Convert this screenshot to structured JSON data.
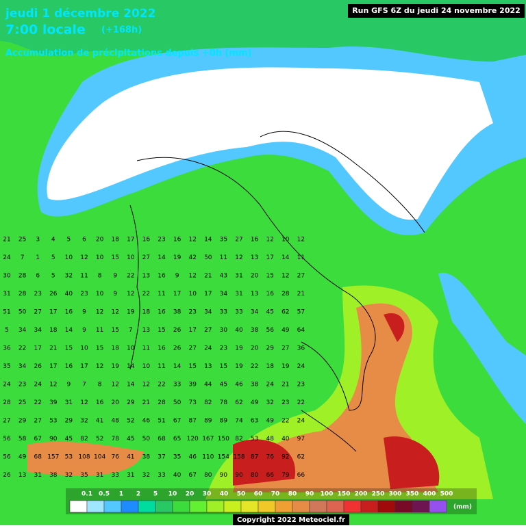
{
  "header": {
    "title": "jeudi 1 décembre 2022",
    "time": "7:00 locale",
    "offset": "(+168h)",
    "subtitle": "Accumulation de précipitations depuis +0h (mm)",
    "run": "Run GFS 6Z du jeudi 24 novembre 2022"
  },
  "legend": {
    "values": [
      0.1,
      0.5,
      1,
      2,
      5,
      10,
      20,
      30,
      40,
      50,
      60,
      70,
      80,
      90,
      100,
      150,
      200,
      250,
      300,
      350,
      400,
      500
    ],
    "colors": [
      "#ffffff",
      "#9fe6ff",
      "#52c8ff",
      "#1e8cff",
      "#00dca0",
      "#28c864",
      "#3cdc3c",
      "#64f032",
      "#a0f028",
      "#c8f01e",
      "#e6e628",
      "#f0c828",
      "#f0a032",
      "#e68c46",
      "#d2785a",
      "#dc6450",
      "#f03232",
      "#c81e1e",
      "#a00a0a",
      "#780a28",
      "#6e1450",
      "#9650f0"
    ],
    "unit": "(mm)"
  },
  "grid": {
    "rows": [
      [
        21,
        25,
        3,
        4,
        5,
        6,
        20,
        18,
        17,
        16,
        23,
        16,
        12,
        14,
        35,
        27,
        16,
        12,
        10,
        12
      ],
      [
        24,
        7,
        1,
        5,
        10,
        12,
        10,
        15,
        10,
        27,
        14,
        19,
        42,
        50,
        11,
        12,
        13,
        17,
        14,
        11
      ],
      [
        30,
        28,
        6,
        5,
        32,
        11,
        8,
        9,
        22,
        13,
        16,
        9,
        12,
        21,
        43,
        31,
        20,
        15,
        12,
        27
      ],
      [
        31,
        28,
        23,
        26,
        40,
        23,
        10,
        9,
        12,
        22,
        11,
        17,
        10,
        17,
        34,
        31,
        13,
        16,
        28,
        21
      ],
      [
        51,
        50,
        27,
        17,
        16,
        9,
        12,
        12,
        19,
        18,
        16,
        38,
        23,
        34,
        33,
        33,
        34,
        45,
        62,
        57
      ],
      [
        5,
        34,
        34,
        18,
        14,
        9,
        11,
        15,
        7,
        13,
        15,
        26,
        17,
        27,
        30,
        40,
        38,
        56,
        49,
        64
      ],
      [
        36,
        22,
        17,
        21,
        15,
        10,
        15,
        18,
        10,
        11,
        16,
        26,
        27,
        24,
        23,
        19,
        20,
        29,
        27,
        36
      ],
      [
        35,
        34,
        26,
        17,
        16,
        17,
        12,
        19,
        14,
        10,
        11,
        14,
        15,
        13,
        15,
        19,
        22,
        18,
        19,
        24
      ],
      [
        24,
        23,
        24,
        12,
        9,
        7,
        8,
        12,
        14,
        12,
        22,
        33,
        39,
        44,
        45,
        46,
        38,
        24,
        21,
        23
      ],
      [
        28,
        25,
        22,
        39,
        31,
        12,
        16,
        20,
        29,
        21,
        28,
        50,
        73,
        82,
        78,
        62,
        49,
        32,
        23,
        22
      ],
      [
        27,
        29,
        27,
        53,
        29,
        32,
        41,
        48,
        52,
        46,
        51,
        67,
        87,
        89,
        89,
        74,
        63,
        49,
        22,
        24
      ],
      [
        56,
        58,
        67,
        90,
        45,
        82,
        52,
        78,
        45,
        50,
        68,
        65,
        120,
        167,
        150,
        82,
        53,
        48,
        40,
        97
      ],
      [
        56,
        49,
        68,
        157,
        53,
        108,
        104,
        76,
        41,
        38,
        37,
        35,
        46,
        110,
        154,
        158,
        87,
        76,
        92,
        62
      ],
      [
        26,
        13,
        31,
        38,
        32,
        35,
        31,
        33,
        31,
        32,
        33,
        40,
        67,
        80,
        90,
        90,
        80,
        66,
        79,
        66
      ]
    ]
  },
  "footer": {
    "copyright": "Copyright 2022 Meteociel.fr"
  }
}
